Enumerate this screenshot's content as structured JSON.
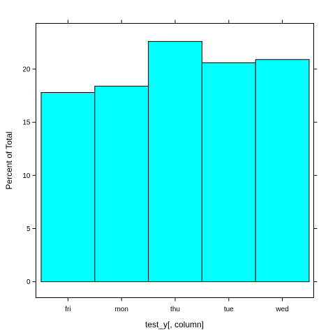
{
  "chart_data": {
    "type": "bar",
    "categories": [
      "fri",
      "mon",
      "thu",
      "tue",
      "wed"
    ],
    "values": [
      17.8,
      18.4,
      22.6,
      20.6,
      20.9
    ],
    "xlabel": "test_y[, column]",
    "ylabel": "Percent of Total",
    "ylim": [
      -1.5,
      24.3
    ],
    "yticks": [
      0,
      5,
      10,
      15,
      20
    ],
    "bar_color": "#00FFFF",
    "bar_border_color": "#000000",
    "grid": false
  }
}
